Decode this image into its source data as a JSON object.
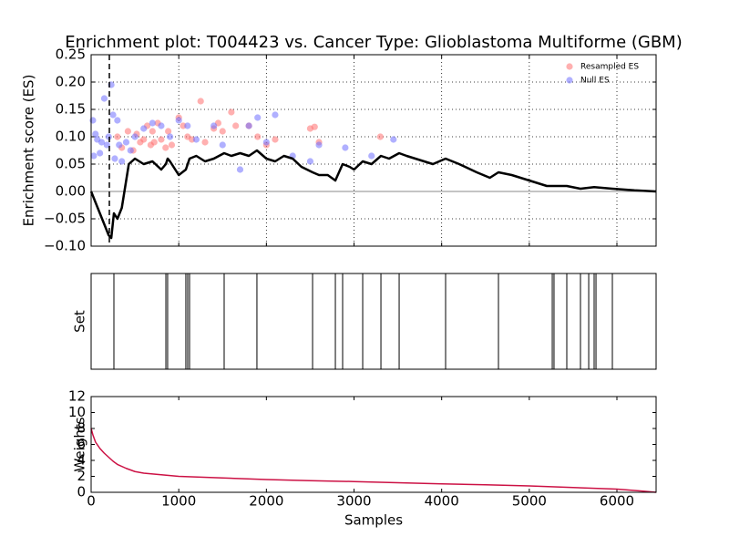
{
  "chart_data": [
    {
      "type": "line",
      "title": "Enrichment plot: T004423 vs. Cancer Type: Glioblastoma Multiforme (GBM)",
      "ylabel": "Enrichment score (ES)",
      "xlim": [
        0,
        6447
      ],
      "ylim": [
        -0.1,
        0.25
      ],
      "xticks": [
        0,
        1000,
        2000,
        3000,
        4000,
        5000,
        6000
      ],
      "yticks": [
        {
          "value": -0.1,
          "label": "−0.10"
        },
        {
          "value": -0.05,
          "label": "−0.05"
        },
        {
          "value": 0,
          "label": "0.00"
        },
        {
          "value": 0.05,
          "label": "0.05"
        },
        {
          "value": 0.1,
          "label": "0.10"
        },
        {
          "value": 0.15,
          "label": "0.15"
        },
        {
          "value": 0.2,
          "label": "0.20"
        },
        {
          "value": 0.25,
          "label": "0.25"
        }
      ],
      "grid": true,
      "legend": "upper right",
      "vline": 208,
      "hline": 0,
      "color": "#000000",
      "x": [
        0,
        50,
        100,
        150,
        200,
        230,
        260,
        300,
        350,
        380,
        400,
        430,
        500,
        600,
        700,
        800,
        853,
        873,
        900,
        1000,
        1081,
        1102,
        1123,
        1200,
        1300,
        1400,
        1518,
        1600,
        1700,
        1800,
        1892,
        2000,
        2100,
        2200,
        2300,
        2400,
        2527,
        2600,
        2700,
        2787,
        2870,
        2950,
        3000,
        3099,
        3200,
        3307,
        3400,
        3515,
        3600,
        3800,
        3900,
        4045,
        4200,
        4400,
        4550,
        4648,
        4800,
        5000,
        5200,
        5262,
        5428,
        5584,
        5740,
        5948,
        6200,
        6447
      ],
      "values": [
        0,
        -0.02,
        -0.04,
        -0.06,
        -0.08,
        -0.085,
        -0.04,
        -0.05,
        -0.03,
        0,
        0.02,
        0.05,
        0.06,
        0.05,
        0.055,
        0.04,
        0.05,
        0.06,
        0.055,
        0.03,
        0.04,
        0.05,
        0.06,
        0.065,
        0.055,
        0.06,
        0.07,
        0.065,
        0.07,
        0.065,
        0.075,
        0.06,
        0.055,
        0.065,
        0.06,
        0.045,
        0.035,
        0.03,
        0.03,
        0.02,
        0.05,
        0.045,
        0.04,
        0.055,
        0.05,
        0.065,
        0.06,
        0.07,
        0.065,
        0.055,
        0.05,
        0.06,
        0.05,
        0.035,
        0.025,
        0.035,
        0.03,
        0.02,
        0.01,
        0.01,
        0.01,
        0.005,
        0.008,
        0.005,
        0.002,
        0
      ],
      "scatter_series": [
        {
          "name": "Resampled ES",
          "color": "#ff7070",
          "x": [
            300,
            350,
            420,
            480,
            520,
            560,
            600,
            640,
            680,
            700,
            720,
            760,
            800,
            850,
            880,
            920,
            1000,
            1050,
            1100,
            1150,
            1250,
            1300,
            1400,
            1450,
            1500,
            1600,
            1650,
            1800,
            1900,
            2000,
            2100,
            2500,
            2550,
            2600,
            3300
          ],
          "values": [
            0.1,
            0.08,
            0.11,
            0.075,
            0.105,
            0.09,
            0.095,
            0.12,
            0.085,
            0.11,
            0.09,
            0.125,
            0.095,
            0.08,
            0.11,
            0.085,
            0.135,
            0.12,
            0.1,
            0.095,
            0.165,
            0.09,
            0.115,
            0.125,
            0.11,
            0.145,
            0.12,
            0.12,
            0.1,
            0.085,
            0.095,
            0.115,
            0.118,
            0.09,
            0.1
          ]
        },
        {
          "name": "Null ES",
          "color": "#7070ff",
          "x": [
            20,
            30,
            50,
            70,
            100,
            120,
            150,
            180,
            200,
            230,
            250,
            270,
            300,
            320,
            350,
            400,
            450,
            500,
            600,
            700,
            800,
            900,
            1000,
            1100,
            1200,
            1400,
            1500,
            1700,
            1800,
            1900,
            2000,
            2100,
            2300,
            2500,
            2600,
            2900,
            3200,
            3450
          ],
          "values": [
            0.13,
            0.065,
            0.105,
            0.095,
            0.07,
            0.09,
            0.17,
            0.085,
            0.1,
            0.195,
            0.14,
            0.06,
            0.13,
            0.085,
            0.055,
            0.09,
            0.075,
            0.1,
            0.115,
            0.125,
            0.12,
            0.1,
            0.13,
            0.12,
            0.095,
            0.12,
            0.085,
            0.04,
            0.12,
            0.135,
            0.09,
            0.14,
            0.065,
            0.055,
            0.085,
            0.08,
            0.065,
            0.095
          ]
        }
      ]
    },
    {
      "type": "event",
      "ylabel": "Set",
      "xlim": [
        0,
        6447
      ],
      "color": "#000000",
      "x": [
        260,
        853,
        873,
        1081,
        1102,
        1123,
        1518,
        1892,
        2527,
        2787,
        2870,
        3099,
        3307,
        3515,
        4045,
        4648,
        5262,
        5282,
        5428,
        5584,
        5678,
        5740,
        5761,
        5948
      ]
    },
    {
      "type": "line",
      "ylabel": "Weights",
      "xlabel": "Samples",
      "xlim": [
        0,
        6447
      ],
      "ylim": [
        0,
        12
      ],
      "xticks": [
        0,
        1000,
        2000,
        3000,
        4000,
        5000,
        6000
      ],
      "yticks": [
        0,
        2,
        4,
        6,
        8,
        10,
        12
      ],
      "grid": false,
      "color": "#cc1144",
      "x": [
        0,
        20,
        50,
        100,
        150,
        200,
        250,
        300,
        400,
        500,
        600,
        800,
        1000,
        1500,
        2000,
        2500,
        3000,
        3500,
        4000,
        4500,
        5000,
        5500,
        6000,
        6300,
        6447
      ],
      "values": [
        8,
        7.2,
        6.3,
        5.5,
        4.9,
        4.4,
        3.9,
        3.5,
        3.0,
        2.6,
        2.4,
        2.2,
        2.0,
        1.8,
        1.6,
        1.45,
        1.35,
        1.2,
        1.05,
        0.95,
        0.8,
        0.6,
        0.4,
        0.15,
        0
      ]
    }
  ]
}
